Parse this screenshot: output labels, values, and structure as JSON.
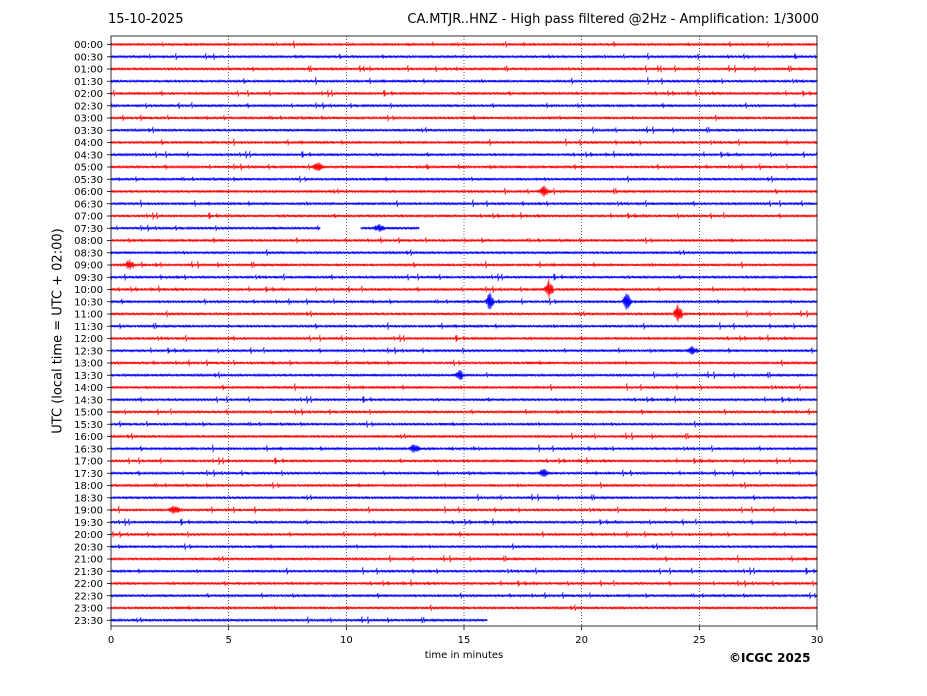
{
  "header": {
    "date": "15-10-2025",
    "title": "CA.MTJR..HNZ - High pass filtered @2Hz - Amplification: 1/3000"
  },
  "footer": {
    "copyright": "©ICGC 2025"
  },
  "chart_data": {
    "type": "line",
    "subtype": "helicorder",
    "xlabel": "time in minutes",
    "ylabel": "UTC (local time = UTC + 02:00)",
    "xlim": [
      0,
      30
    ],
    "x_ticks": [
      0,
      5,
      10,
      15,
      20,
      25,
      30
    ],
    "grid": "vertical dotted lines at 5-minute intervals",
    "colors": {
      "odd_rows": "#ff0000",
      "even_rows": "#0000ff"
    },
    "rows": [
      "00:00",
      "00:30",
      "01:00",
      "01:30",
      "02:00",
      "02:30",
      "03:00",
      "03:30",
      "04:00",
      "04:30",
      "05:00",
      "05:30",
      "06:00",
      "06:30",
      "07:00",
      "07:30",
      "08:00",
      "08:30",
      "09:00",
      "09:30",
      "10:00",
      "10:30",
      "11:00",
      "11:30",
      "12:00",
      "12:30",
      "13:00",
      "13:30",
      "14:00",
      "14:30",
      "15:00",
      "15:30",
      "16:00",
      "16:30",
      "17:00",
      "17:30",
      "18:00",
      "18:30",
      "19:00",
      "19:30",
      "20:00",
      "20:30",
      "21:00",
      "21:30",
      "22:00",
      "22:30",
      "23:00",
      "23:30"
    ],
    "trace_gaps": [
      {
        "row": "07:30",
        "x_range": [
          8.9,
          10.6
        ]
      },
      {
        "row": "07:30",
        "x_range": [
          13.1,
          30
        ]
      },
      {
        "row": "23:30",
        "x_range": [
          16.0,
          30
        ]
      }
    ],
    "events": [
      {
        "row": "10:30",
        "x": 16.1,
        "amplitude": "large"
      },
      {
        "row": "10:30",
        "x": 21.95,
        "amplitude": "large"
      },
      {
        "row": "10:00",
        "x": 18.6,
        "amplitude": "large"
      },
      {
        "row": "11:00",
        "x": 24.1,
        "amplitude": "large"
      },
      {
        "row": "07:30",
        "x": 11.4,
        "amplitude": "medium"
      },
      {
        "row": "09:00",
        "x": 0.8,
        "amplitude": "medium"
      },
      {
        "row": "06:00",
        "x": 18.4,
        "amplitude": "medium"
      },
      {
        "row": "12:30",
        "x": 24.7,
        "amplitude": "medium"
      },
      {
        "row": "13:30",
        "x": 14.8,
        "amplitude": "medium"
      },
      {
        "row": "17:30",
        "x": 18.4,
        "amplitude": "medium"
      },
      {
        "row": "16:30",
        "x": 12.9,
        "amplitude": "medium"
      },
      {
        "row": "19:00",
        "x": 2.7,
        "amplitude": "medium"
      },
      {
        "row": "05:00",
        "x": 8.8,
        "amplitude": "medium"
      }
    ]
  }
}
